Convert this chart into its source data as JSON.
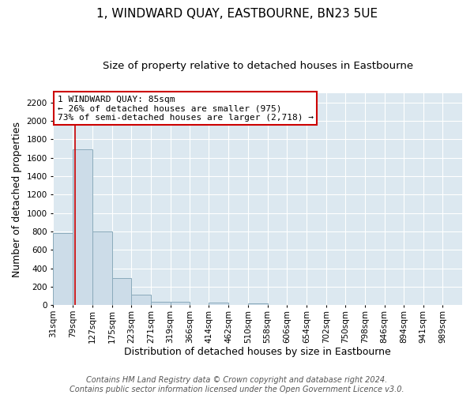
{
  "title": "1, WINDWARD QUAY, EASTBOURNE, BN23 5UE",
  "subtitle": "Size of property relative to detached houses in Eastbourne",
  "xlabel": "Distribution of detached houses by size in Eastbourne",
  "ylabel": "Number of detached properties",
  "footer_line1": "Contains HM Land Registry data © Crown copyright and database right 2024.",
  "footer_line2": "Contains public sector information licensed under the Open Government Licence v3.0.",
  "annotation_title": "1 WINDWARD QUAY: 85sqm",
  "annotation_line2": "← 26% of detached houses are smaller (975)",
  "annotation_line3": "73% of semi-detached houses are larger (2,718) →",
  "bar_color": "#ccdce8",
  "bar_edge_color": "#8aaabb",
  "marker_color": "#cc0000",
  "marker_value": 85,
  "categories": [
    "31sqm",
    "79sqm",
    "127sqm",
    "175sqm",
    "223sqm",
    "271sqm",
    "319sqm",
    "366sqm",
    "414sqm",
    "462sqm",
    "510sqm",
    "558sqm",
    "606sqm",
    "654sqm",
    "702sqm",
    "750sqm",
    "798sqm",
    "846sqm",
    "894sqm",
    "941sqm",
    "989sqm"
  ],
  "bin_edges": [
    31,
    79,
    127,
    175,
    223,
    271,
    319,
    366,
    414,
    462,
    510,
    558,
    606,
    654,
    702,
    750,
    798,
    846,
    894,
    941,
    989,
    1037
  ],
  "values": [
    780,
    1690,
    800,
    295,
    110,
    40,
    35,
    5,
    25,
    0,
    20,
    0,
    0,
    0,
    0,
    0,
    0,
    0,
    0,
    0,
    0
  ],
  "ylim": [
    0,
    2300
  ],
  "yticks": [
    0,
    200,
    400,
    600,
    800,
    1000,
    1200,
    1400,
    1600,
    1800,
    2000,
    2200
  ],
  "bg_color": "#ffffff",
  "plot_bg_color": "#dce8f0",
  "annotation_box_color": "white",
  "annotation_box_edge": "#cc0000",
  "title_fontsize": 11,
  "subtitle_fontsize": 9.5,
  "axis_label_fontsize": 9,
  "tick_fontsize": 7.5,
  "footer_fontsize": 7
}
